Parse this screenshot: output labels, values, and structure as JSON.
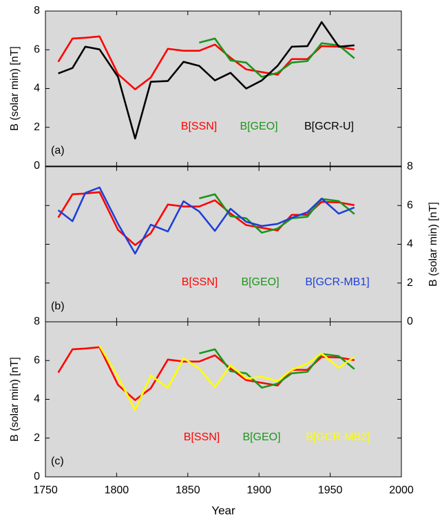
{
  "chart_data": [
    {
      "type": "line",
      "panel_label": "(a)",
      "ylabel": "B (solar min) [nT]",
      "xlim": [
        1750,
        2000
      ],
      "ylim": [
        0,
        8
      ],
      "yticks": [
        0,
        2,
        4,
        6,
        8
      ],
      "series": [
        {
          "name": "B[SSN]",
          "color": "#ff0000",
          "x": [
            1759,
            1769,
            1778,
            1788,
            1801,
            1813,
            1824,
            1836,
            1847,
            1858,
            1869,
            1880,
            1891,
            1902,
            1913,
            1923,
            1934,
            1944,
            1956,
            1967
          ],
          "values": [
            5.38,
            6.58,
            6.62,
            6.69,
            4.74,
            3.96,
            4.57,
            6.05,
            5.95,
            5.95,
            6.27,
            5.59,
            4.99,
            4.85,
            4.71,
            5.52,
            5.52,
            6.19,
            6.16,
            6.02
          ]
        },
        {
          "name": "B[GEO]",
          "color": "#1a961a",
          "x": [
            1858,
            1869,
            1880,
            1891,
            1902,
            1913,
            1923,
            1934,
            1944,
            1956,
            1967
          ],
          "values": [
            6.37,
            6.58,
            5.45,
            5.34,
            4.6,
            4.81,
            5.34,
            5.42,
            6.34,
            6.23,
            5.56
          ]
        },
        {
          "name": "B[GCR-U]",
          "color": "#000000",
          "x": [
            1759,
            1769,
            1778,
            1788,
            1801,
            1813,
            1824,
            1836,
            1847,
            1858,
            1869,
            1880,
            1891,
            1902,
            1913,
            1923,
            1934,
            1944,
            1956,
            1967
          ],
          "values": [
            4.78,
            5.06,
            6.16,
            6.02,
            4.6,
            1.42,
            4.35,
            4.39,
            5.38,
            5.17,
            4.42,
            4.81,
            4.0,
            4.42,
            5.17,
            6.16,
            6.19,
            7.43,
            6.16,
            6.23
          ]
        }
      ]
    },
    {
      "type": "line",
      "panel_label": "(b)",
      "y2label": "B (solar min) [nT]",
      "xlim": [
        1750,
        2000
      ],
      "y2lim": [
        0,
        8
      ],
      "y2ticks": [
        0,
        2,
        4,
        6,
        8
      ],
      "series": [
        {
          "name": "B[SSN]",
          "color": "#ff0000",
          "axis": "y2",
          "x": [
            1759,
            1769,
            1778,
            1788,
            1801,
            1813,
            1824,
            1836,
            1847,
            1858,
            1869,
            1880,
            1891,
            1902,
            1913,
            1923,
            1934,
            1944,
            1956,
            1967
          ],
          "values": [
            5.38,
            6.58,
            6.62,
            6.69,
            4.74,
            3.96,
            4.57,
            6.05,
            5.95,
            5.95,
            6.27,
            5.59,
            4.99,
            4.85,
            4.71,
            5.52,
            5.52,
            6.19,
            6.16,
            6.02
          ]
        },
        {
          "name": "B[GEO]",
          "color": "#1a961a",
          "axis": "y2",
          "x": [
            1858,
            1869,
            1880,
            1891,
            1902,
            1913,
            1923,
            1934,
            1944,
            1956,
            1967
          ],
          "values": [
            6.37,
            6.58,
            5.45,
            5.34,
            4.6,
            4.81,
            5.34,
            5.42,
            6.34,
            6.23,
            5.56
          ]
        },
        {
          "name": "B[GCR-MB1]",
          "color": "#1f3fd6",
          "axis": "y2",
          "x": [
            1759,
            1769,
            1778,
            1788,
            1801,
            1813,
            1824,
            1836,
            1847,
            1858,
            1869,
            1880,
            1891,
            1902,
            1913,
            1923,
            1934,
            1944,
            1956,
            1967
          ],
          "values": [
            5.76,
            5.19,
            6.65,
            6.93,
            5.05,
            3.52,
            5.01,
            4.66,
            6.22,
            5.69,
            4.69,
            5.83,
            5.16,
            4.94,
            5.05,
            5.37,
            5.65,
            6.36,
            5.58,
            5.9
          ]
        }
      ]
    },
    {
      "type": "line",
      "panel_label": "(c)",
      "ylabel": "B (solar min) [nT]",
      "xlabel": "Year",
      "xlim": [
        1750,
        2000
      ],
      "xticks": [
        1750,
        1800,
        1850,
        1900,
        1950,
        2000
      ],
      "ylim": [
        0,
        8
      ],
      "yticks": [
        0,
        2,
        4,
        6,
        8
      ],
      "series": [
        {
          "name": "B[SSN]",
          "color": "#ff0000",
          "x": [
            1759,
            1769,
            1778,
            1788,
            1801,
            1813,
            1824,
            1836,
            1847,
            1858,
            1869,
            1880,
            1891,
            1902,
            1913,
            1923,
            1934,
            1944,
            1956,
            1967
          ],
          "values": [
            5.38,
            6.58,
            6.62,
            6.69,
            4.74,
            3.96,
            4.57,
            6.05,
            5.95,
            5.95,
            6.27,
            5.59,
            4.99,
            4.85,
            4.71,
            5.52,
            5.52,
            6.19,
            6.16,
            6.02
          ]
        },
        {
          "name": "B[GEO]",
          "color": "#1a961a",
          "x": [
            1858,
            1869,
            1880,
            1891,
            1902,
            1913,
            1923,
            1934,
            1944,
            1956,
            1967
          ],
          "values": [
            6.37,
            6.58,
            5.45,
            5.34,
            4.6,
            4.81,
            5.34,
            5.42,
            6.34,
            6.23,
            5.56
          ]
        },
        {
          "name": "B[GCR-MB2]",
          "color": "#ffff00",
          "x": [
            1788,
            1801,
            1813,
            1824,
            1836,
            1847,
            1858,
            1869,
            1880,
            1891,
            1902,
            1913,
            1923,
            1934,
            1944,
            1956,
            1967
          ],
          "values": [
            6.76,
            5.16,
            3.45,
            5.23,
            4.59,
            6.12,
            5.59,
            4.62,
            5.76,
            5.08,
            5.16,
            4.94,
            5.52,
            5.84,
            6.37,
            5.62,
            6.2
          ]
        }
      ]
    }
  ]
}
